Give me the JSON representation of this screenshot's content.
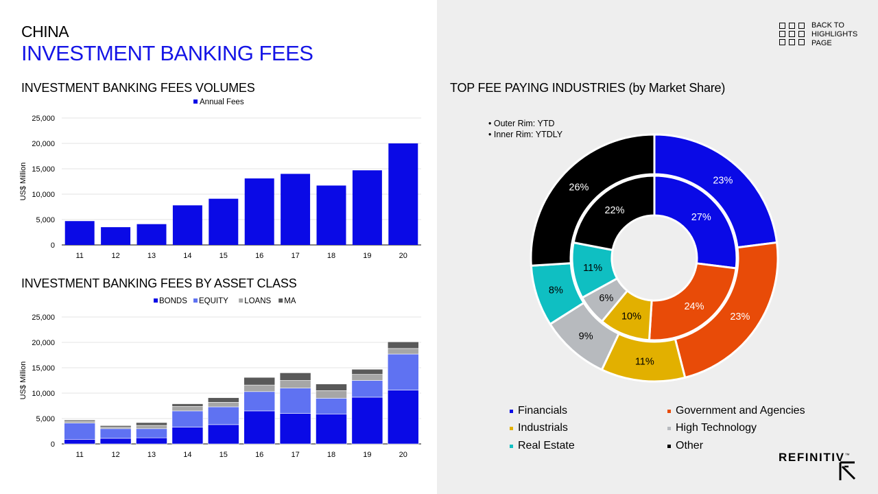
{
  "header": {
    "title_country": "CHINA",
    "title_main": "INVESTMENT BANKING FEES",
    "back_link": [
      "BACK TO",
      "HIGHLIGHTS",
      "PAGE"
    ]
  },
  "sections": {
    "volumes_title": "INVESTMENT BANKING FEES VOLUMES",
    "asset_title": "INVESTMENT BANKING FEES BY ASSET CLASS",
    "industries_title": "TOP FEE PAYING INDUSTRIES (by Market Share)"
  },
  "donut_notes": [
    "• Outer Rim: YTD",
    "• Inner Rim: YTDLY"
  ],
  "brand": {
    "logo_text": "REFINITIV",
    "logo_tm": "™"
  },
  "colors": {
    "blue": "#0a0ae6",
    "equity": "#5f72f2",
    "loans": "#a6a6a6",
    "ma": "#595959",
    "financials": "#0a0ae6",
    "government": "#e84b08",
    "industrials": "#e2b000",
    "high_technology": "#b7babe",
    "real_estate": "#0fbfc2",
    "other": "#000000"
  },
  "chart_data": [
    {
      "type": "bar",
      "title": "INVESTMENT BANKING FEES VOLUMES",
      "categories": [
        "11",
        "12",
        "13",
        "14",
        "15",
        "16",
        "17",
        "18",
        "19",
        "20"
      ],
      "series": [
        {
          "name": "Annual Fees",
          "values": [
            4700,
            3500,
            4100,
            7800,
            9100,
            13100,
            14000,
            11700,
            14700,
            20000
          ]
        }
      ],
      "xlabel": "",
      "ylabel": "US$ Million",
      "ylim": [
        0,
        25000
      ],
      "yticks": [
        "0",
        "5,000",
        "10,000",
        "15,000",
        "20,000",
        "25,000"
      ],
      "legend": "top-center",
      "grid": true
    },
    {
      "type": "bar",
      "stacked": true,
      "title": "INVESTMENT BANKING FEES BY ASSET CLASS",
      "categories": [
        "11",
        "12",
        "13",
        "14",
        "15",
        "16",
        "17",
        "18",
        "19",
        "20"
      ],
      "series": [
        {
          "name": "BONDS",
          "values": [
            900,
            1100,
            1200,
            3300,
            3800,
            6500,
            6000,
            5900,
            9200,
            10600
          ]
        },
        {
          "name": "EQUITY",
          "values": [
            3200,
            1900,
            1800,
            3200,
            3500,
            3800,
            5000,
            3100,
            3300,
            7100
          ]
        },
        {
          "name": "LOANS",
          "values": [
            350,
            300,
            650,
            900,
            900,
            1300,
            1500,
            1500,
            1200,
            1100
          ]
        },
        {
          "name": "MA",
          "values": [
            250,
            300,
            550,
            500,
            900,
            1500,
            1500,
            1300,
            1000,
            1300
          ]
        }
      ],
      "xlabel": "",
      "ylabel": "US$ Million",
      "ylim": [
        0,
        25000
      ],
      "yticks": [
        "0",
        "5,000",
        "10,000",
        "15,000",
        "20,000",
        "25,000"
      ],
      "legend": "top-center",
      "grid": true
    },
    {
      "type": "pie",
      "subtype": "double-donut",
      "title": "TOP FEE PAYING INDUSTRIES (by Market Share)",
      "labels": [
        "Financials",
        "Government and Agencies",
        "Industrials",
        "High Technology",
        "Real Estate",
        "Other"
      ],
      "series": [
        {
          "name": "Outer Rim: YTD",
          "values": [
            23,
            23,
            11,
            9,
            8,
            26
          ],
          "labels": [
            "23%",
            "23%",
            "11%",
            "9%",
            "8%",
            "26%"
          ]
        },
        {
          "name": "Inner Rim: YTDLY",
          "values": [
            27,
            24,
            10,
            6,
            11,
            22
          ],
          "labels": [
            "27%",
            "24%",
            "10%",
            "6%",
            "11%",
            "22%"
          ]
        }
      ],
      "legend": "bottom"
    }
  ]
}
